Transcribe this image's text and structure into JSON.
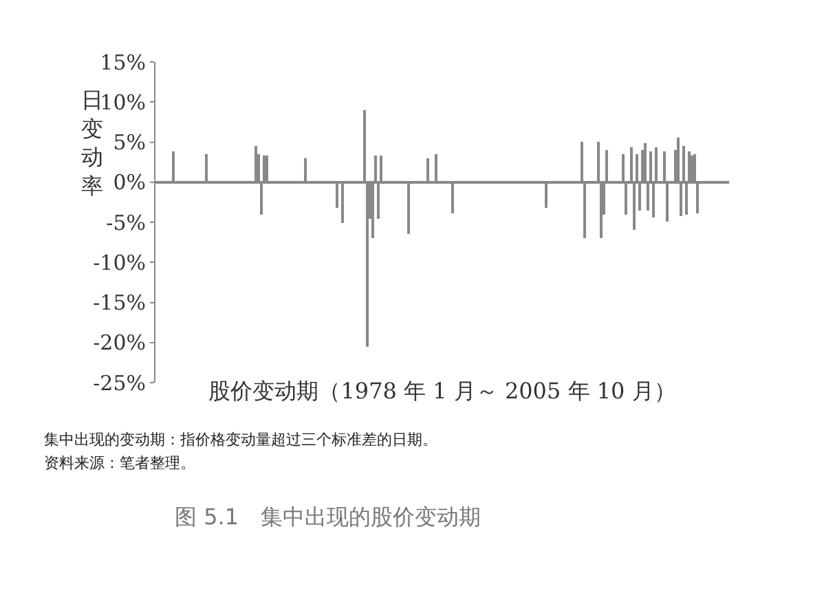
{
  "chart_data": {
    "type": "bar",
    "title": "图 5.1　集中出现的股价变动期",
    "xlabel": "股价变动期（1978 年 1 月～ 2005 年 10 月）",
    "ylabel": "日变动率",
    "annotations": [
      "集中出现的变动期：指价格变动量超过三个标准差的日期。",
      "资料来源：笔者整理。"
    ],
    "categories": [
      null,
      null,
      null,
      null,
      null,
      null,
      null,
      null,
      null,
      null,
      null,
      null,
      null,
      null,
      null,
      null,
      null,
      null,
      null,
      null,
      null,
      null,
      null,
      null,
      null,
      null,
      null,
      null,
      null,
      null,
      null,
      null,
      null,
      null,
      null,
      null,
      null,
      null,
      null,
      null,
      null,
      null,
      null,
      null,
      null,
      null,
      null,
      null,
      null,
      null,
      null,
      null,
      null,
      null,
      null,
      null,
      null,
      null,
      null,
      null,
      null,
      null,
      null,
      null,
      null,
      null,
      null,
      null,
      null,
      null,
      null,
      null,
      null,
      null,
      null,
      null,
      null,
      null,
      null,
      null,
      null,
      null,
      null,
      null,
      null,
      null,
      null,
      null,
      null,
      null,
      null,
      null,
      null,
      null,
      null,
      null,
      null,
      null,
      null,
      null,
      null,
      null,
      null,
      null,
      null,
      null,
      null,
      null,
      null,
      null,
      null,
      null,
      null,
      null,
      null,
      null,
      null,
      null,
      null,
      null,
      null,
      null,
      null,
      null,
      null,
      null,
      null,
      null,
      null,
      null,
      null,
      null,
      null,
      null,
      null,
      null,
      null,
      null,
      null,
      null,
      null,
      null,
      null,
      null,
      null,
      null,
      null,
      null,
      null,
      null,
      null,
      null,
      null,
      null,
      null,
      null,
      null,
      null,
      null,
      null,
      null,
      null,
      null,
      null,
      null,
      null,
      null,
      null,
      null,
      null,
      null,
      null,
      null,
      null,
      null,
      null,
      null,
      null,
      null,
      null,
      null,
      null,
      null,
      null,
      null,
      null,
      null,
      null,
      null,
      null,
      null,
      null,
      null,
      null,
      null,
      null,
      null,
      null,
      null,
      null,
      null,
      null,
      null,
      null,
      null,
      null,
      null,
      null,
      null
    ],
    "values": [
      null,
      null,
      null,
      null,
      null,
      null,
      3.9,
      null,
      null,
      null,
      null,
      null,
      null,
      null,
      null,
      null,
      null,
      null,
      3.5,
      null,
      null,
      null,
      null,
      null,
      null,
      null,
      null,
      null,
      null,
      null,
      null,
      null,
      null,
      null,
      null,
      null,
      4.6,
      3.5,
      -4.1,
      3.4,
      3.3,
      null,
      null,
      null,
      null,
      null,
      null,
      null,
      null,
      null,
      null,
      null,
      null,
      null,
      3.0,
      null,
      null,
      null,
      null,
      null,
      null,
      null,
      null,
      null,
      null,
      null,
      -3.2,
      null,
      -5.0,
      null,
      null,
      null,
      null,
      null,
      null,
      null,
      9.0,
      -20.6,
      -4.5,
      -6.9,
      3.4,
      -4.5,
      3.3,
      null,
      null,
      null,
      null,
      null,
      null,
      null,
      null,
      null,
      -6.4,
      null,
      null,
      null,
      null,
      null,
      null,
      3.0,
      null,
      null,
      3.5,
      null,
      null,
      null,
      null,
      null,
      -3.8,
      null,
      null,
      null,
      null,
      null,
      null,
      null,
      null,
      null,
      null,
      null,
      null,
      null,
      null,
      null,
      null,
      null,
      null,
      null,
      null,
      null,
      null,
      null,
      null,
      null,
      null,
      null,
      null,
      null,
      null,
      null,
      null,
      null,
      -3.2,
      null,
      null,
      null,
      null,
      null,
      null,
      null,
      null,
      null,
      null,
      null,
      null,
      5.1,
      -7.0,
      null,
      null,
      null,
      null,
      5.0,
      -7.0,
      -4.0,
      4.0,
      null,
      null,
      null,
      null,
      null,
      3.5,
      -4.0,
      null,
      4.4,
      -6.0,
      3.5,
      -3.5,
      4.0,
      4.8,
      -3.5,
      3.8,
      -4.4,
      4.3,
      null,
      null,
      3.8,
      -4.9,
      null,
      null,
      4.0,
      5.6,
      -4.3,
      4.6,
      -4.0,
      3.8,
      3.3,
      3.5,
      -3.8,
      null,
      null,
      null,
      null,
      null,
      null,
      null,
      null,
      null,
      null,
      null
    ],
    "color": "#888888",
    "ylim": [
      -25,
      15
    ],
    "yticks": [
      {
        "value": -25,
        "label": "-25%"
      },
      {
        "value": -20,
        "label": "-20%"
      },
      {
        "value": -15,
        "label": "-15%"
      },
      {
        "value": -10,
        "label": "-10%"
      },
      {
        "value": -5,
        "label": "-5%"
      },
      {
        "value": 0,
        "label": "0%"
      },
      {
        "value": 5,
        "label": "5%"
      },
      {
        "value": 10,
        "label": "10%"
      },
      {
        "value": 15,
        "label": "15%"
      }
    ],
    "tick_labels": "y"
  }
}
